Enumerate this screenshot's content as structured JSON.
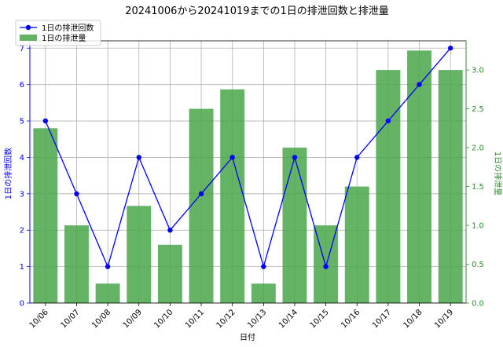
{
  "chart_data": {
    "type": "bar",
    "title": "20241006から20241019までの1日の排泄回数と排泄量",
    "xlabel": "日付",
    "ylabel_left": "1日の排泄回数",
    "ylabel_right": "1日の排泄量",
    "categories": [
      "10/06",
      "10/07",
      "10/08",
      "10/09",
      "10/10",
      "10/11",
      "10/12",
      "10/13",
      "10/14",
      "10/15",
      "10/16",
      "10/17",
      "10/18",
      "10/19"
    ],
    "series": [
      {
        "name": "1日の排泄回数",
        "kind": "line",
        "axis": "left",
        "color": "#0000ff",
        "values": [
          5,
          3,
          1,
          4,
          2,
          3,
          4,
          1,
          4,
          1,
          4,
          5,
          6,
          7
        ]
      },
      {
        "name": "1日の排泄量",
        "kind": "bar",
        "axis": "right",
        "color": "#4aa64a",
        "values": [
          2.25,
          1.0,
          0.25,
          1.25,
          0.75,
          2.5,
          2.75,
          0.25,
          2.0,
          1.0,
          1.5,
          3.0,
          3.25,
          3.0
        ]
      }
    ],
    "ylim_left": [
      0,
      7.2
    ],
    "yticks_left": [
      "0",
      "1",
      "2",
      "3",
      "4",
      "5",
      "6",
      "7"
    ],
    "ylim_right": [
      0,
      3.375
    ],
    "yticks_right": [
      "0.0",
      "0.5",
      "1.0",
      "1.5",
      "2.0",
      "2.5",
      "3.0"
    ],
    "grid": true,
    "legend_placement": "top-left"
  },
  "colors": {
    "left_axis": "#0000ff",
    "right_axis": "#2e8b2e",
    "grid": "#b0b0b0"
  }
}
